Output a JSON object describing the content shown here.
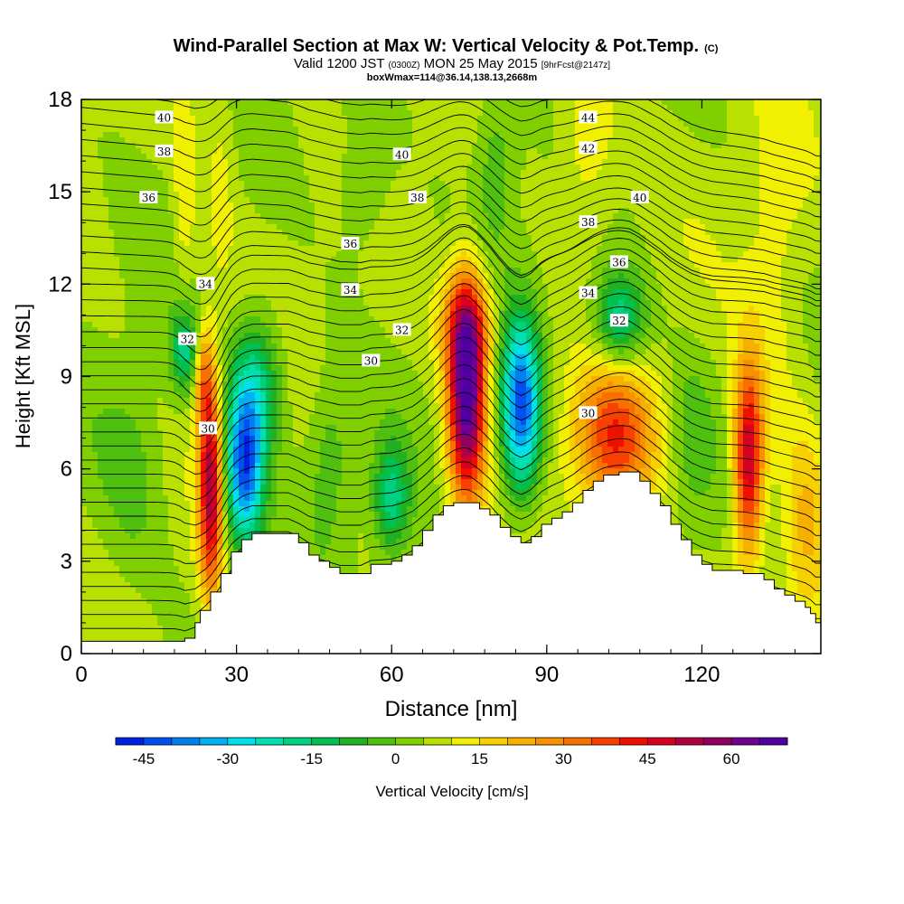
{
  "chart_data": {
    "type": "heatmap",
    "title_main": "Wind-Parallel Section at Max W: Vertical Velocity & Pot.Temp.",
    "title_mark": "(C)",
    "subtitle_pre": "Valid 1200 JST",
    "subtitle_z": "(0300Z)",
    "subtitle_post": "MON 25 May 2015",
    "subtitle_fcst": "[9hrFcst@2147z]",
    "subtitle2": "boxWmax=114@36.14,138.13,2668m",
    "xlabel": "Distance [nm]",
    "ylabel": "Height [Kft MSL]",
    "xlim": [
      0,
      143
    ],
    "ylim": [
      0,
      18
    ],
    "x_ticks": [
      "0",
      "30",
      "60",
      "90",
      "120"
    ],
    "x_tick_values": [
      0,
      30,
      60,
      90,
      120
    ],
    "y_ticks": [
      "0",
      "3",
      "6",
      "9",
      "12",
      "15",
      "18"
    ],
    "y_tick_values": [
      0,
      3,
      6,
      9,
      12,
      15,
      18
    ],
    "colorbar": {
      "label": "Vertical Velocity [cm/s]",
      "min": -50,
      "max": 70,
      "step": 5,
      "tick_labels": [
        "-45",
        "-30",
        "-15",
        "0",
        "15",
        "30",
        "45",
        "60"
      ],
      "tick_values": [
        -45,
        -30,
        -15,
        0,
        15,
        30,
        45,
        60
      ],
      "colors": [
        "#0020e0",
        "#0050f0",
        "#0080f0",
        "#00b0f0",
        "#00e0e8",
        "#00e0b0",
        "#00d080",
        "#00c050",
        "#20b020",
        "#50c010",
        "#80d000",
        "#b8e000",
        "#f0f000",
        "#f8d000",
        "#f8b000",
        "#f89000",
        "#f87000",
        "#f84000",
        "#f01000",
        "#d80020",
        "#b00040",
        "#900060",
        "#700090",
        "#5000a0"
      ]
    },
    "terrain": [
      [
        0,
        0.4
      ],
      [
        8,
        0.4
      ],
      [
        16,
        0.4
      ],
      [
        20,
        0.5
      ],
      [
        22,
        1.0
      ],
      [
        23,
        1.4
      ],
      [
        25,
        2.0
      ],
      [
        27,
        2.6
      ],
      [
        29,
        3.3
      ],
      [
        31,
        3.7
      ],
      [
        33,
        3.9
      ],
      [
        36,
        3.9
      ],
      [
        40,
        3.9
      ],
      [
        42,
        3.6
      ],
      [
        44,
        3.2
      ],
      [
        46,
        3.0
      ],
      [
        48,
        2.8
      ],
      [
        50,
        2.6
      ],
      [
        54,
        2.6
      ],
      [
        56,
        2.9
      ],
      [
        60,
        3.0
      ],
      [
        62,
        3.2
      ],
      [
        64,
        3.5
      ],
      [
        66,
        4.0
      ],
      [
        68,
        4.5
      ],
      [
        70,
        4.8
      ],
      [
        72,
        4.9
      ],
      [
        75,
        4.9
      ],
      [
        77,
        4.7
      ],
      [
        79,
        4.5
      ],
      [
        81,
        4.1
      ],
      [
        83,
        3.8
      ],
      [
        85,
        3.6
      ],
      [
        87,
        3.8
      ],
      [
        89,
        4.2
      ],
      [
        91,
        4.4
      ],
      [
        93,
        4.6
      ],
      [
        95,
        4.9
      ],
      [
        97,
        5.3
      ],
      [
        99,
        5.6
      ],
      [
        101,
        5.8
      ],
      [
        104,
        5.9
      ],
      [
        106,
        5.9
      ],
      [
        108,
        5.6
      ],
      [
        110,
        5.2
      ],
      [
        112,
        4.8
      ],
      [
        114,
        4.2
      ],
      [
        116,
        3.7
      ],
      [
        118,
        3.2
      ],
      [
        120,
        2.9
      ],
      [
        122,
        2.7
      ],
      [
        128,
        2.6
      ],
      [
        132,
        2.4
      ],
      [
        134,
        2.1
      ],
      [
        136,
        1.9
      ],
      [
        138,
        1.7
      ],
      [
        140,
        1.5
      ],
      [
        141,
        1.3
      ],
      [
        142,
        1.0
      ],
      [
        143,
        1.0
      ]
    ],
    "w_features": [
      {
        "x": 25.0,
        "y": 5.5,
        "sx": 1.6,
        "sy": 2.6,
        "amp": 46
      },
      {
        "x": 23.5,
        "y": 9.0,
        "sx": 1.2,
        "sy": 1.2,
        "amp": 20
      },
      {
        "x": 20.0,
        "y": 9.8,
        "sx": 2.0,
        "sy": 1.0,
        "amp": -22
      },
      {
        "x": 31.5,
        "y": 6.0,
        "sx": 2.6,
        "sy": 1.8,
        "amp": -48
      },
      {
        "x": 34.0,
        "y": 8.8,
        "sx": 3.5,
        "sy": 1.6,
        "amp": -22
      },
      {
        "x": 60.0,
        "y": 5.0,
        "sx": 2.5,
        "sy": 1.3,
        "amp": -22
      },
      {
        "x": 74.5,
        "y": 8.3,
        "sx": 2.5,
        "sy": 2.4,
        "amp": 62
      },
      {
        "x": 74.5,
        "y": 10.7,
        "sx": 3.5,
        "sy": 1.2,
        "amp": 24
      },
      {
        "x": 85.0,
        "y": 8.0,
        "sx": 2.7,
        "sy": 2.0,
        "amp": -48
      },
      {
        "x": 103.0,
        "y": 7.0,
        "sx": 5.5,
        "sy": 1.7,
        "amp": 32
      },
      {
        "x": 104.0,
        "y": 10.8,
        "sx": 3.5,
        "sy": 1.1,
        "amp": -26
      },
      {
        "x": 129.0,
        "y": 6.3,
        "sx": 2.0,
        "sy": 2.2,
        "amp": 46
      },
      {
        "x": 140.0,
        "y": 4.0,
        "sx": 3.0,
        "sy": 2.5,
        "amp": 14
      },
      {
        "x": 27.0,
        "y": 15.5,
        "sx": 2.0,
        "sy": 2.5,
        "amp": 6
      },
      {
        "x": 20.0,
        "y": 15.0,
        "sx": 1.5,
        "sy": 2.5,
        "amp": 9
      },
      {
        "x": 98.0,
        "y": 16.5,
        "sx": 4.0,
        "sy": 2.0,
        "amp": 10
      },
      {
        "x": 55.0,
        "y": 15.5,
        "sx": 4.0,
        "sy": 2.0,
        "amp": -8
      },
      {
        "x": 80.0,
        "y": 16.0,
        "sx": 3.0,
        "sy": 2.0,
        "amp": -10
      },
      {
        "x": 10.0,
        "y": 6.0,
        "sx": 5.0,
        "sy": 2.5,
        "amp": -8
      },
      {
        "x": 48.0,
        "y": 6.5,
        "sx": 3.0,
        "sy": 2.0,
        "amp": -9
      },
      {
        "x": 118.0,
        "y": 7.0,
        "sx": 3.0,
        "sy": 2.0,
        "amp": -8
      },
      {
        "x": 134.0,
        "y": 12.0,
        "sx": 4.0,
        "sy": 4.0,
        "amp": 7
      }
    ],
    "theta_labels": [
      {
        "x": 16,
        "y": 17.4,
        "text": "40"
      },
      {
        "x": 16,
        "y": 16.3,
        "text": "38"
      },
      {
        "x": 13,
        "y": 14.8,
        "text": "36"
      },
      {
        "x": 24,
        "y": 12.0,
        "text": "34"
      },
      {
        "x": 20.5,
        "y": 10.2,
        "text": "32"
      },
      {
        "x": 24.5,
        "y": 7.3,
        "text": "30"
      },
      {
        "x": 62,
        "y": 16.2,
        "text": "40"
      },
      {
        "x": 65,
        "y": 14.8,
        "text": "38"
      },
      {
        "x": 52,
        "y": 13.3,
        "text": "36"
      },
      {
        "x": 52,
        "y": 11.8,
        "text": "34"
      },
      {
        "x": 62,
        "y": 10.5,
        "text": "32"
      },
      {
        "x": 56,
        "y": 9.5,
        "text": "30"
      },
      {
        "x": 98,
        "y": 17.4,
        "text": "44"
      },
      {
        "x": 98,
        "y": 16.4,
        "text": "42"
      },
      {
        "x": 108,
        "y": 14.8,
        "text": "40"
      },
      {
        "x": 98,
        "y": 14.0,
        "text": "38"
      },
      {
        "x": 104,
        "y": 12.7,
        "text": "36"
      },
      {
        "x": 98,
        "y": 11.7,
        "text": "34"
      },
      {
        "x": 104,
        "y": 10.8,
        "text": "32"
      },
      {
        "x": 98,
        "y": 7.8,
        "text": "30"
      }
    ]
  }
}
